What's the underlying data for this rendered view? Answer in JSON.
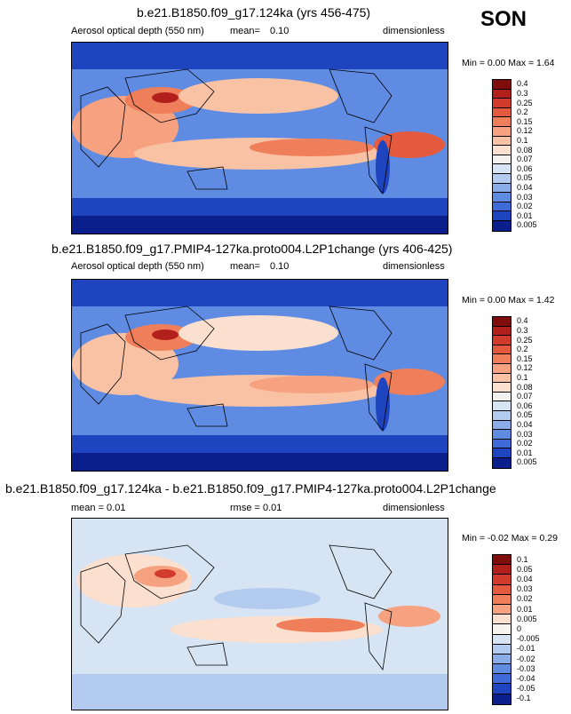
{
  "season": "SON",
  "panels": [
    {
      "title": "b.e21.B1850.f09_g17.124ka (yrs 456-475)",
      "left_label": "Aerosol optical depth (550 nm)",
      "mean_label": "mean=",
      "mean_value": "0.10",
      "units": "dimensionless",
      "minmax": "Min =   0.00 Max =   1.64",
      "colorbar_labels": [
        "0.4",
        "0.3",
        "0.25",
        "0.2",
        "0.15",
        "0.12",
        "0.1",
        "0.08",
        "0.07",
        "0.06",
        "0.05",
        "0.04",
        "0.03",
        "0.02",
        "0.01",
        "0.005"
      ]
    },
    {
      "title": "b.e21.B1850.f09_g17.PMIP4-127ka.proto004.L2P1change (yrs 406-425)",
      "left_label": "Aerosol optical depth (550 nm)",
      "mean_label": "mean=",
      "mean_value": "0.10",
      "units": "dimensionless",
      "minmax": "Min =   0.00 Max =   1.42",
      "colorbar_labels": [
        "0.4",
        "0.3",
        "0.25",
        "0.2",
        "0.15",
        "0.12",
        "0.1",
        "0.08",
        "0.07",
        "0.06",
        "0.05",
        "0.04",
        "0.03",
        "0.02",
        "0.01",
        "0.005"
      ]
    },
    {
      "title": "b.e21.B1850.f09_g17.124ka - b.e21.B1850.f09_g17.PMIP4-127ka.proto004.L2P1change",
      "left_label": "mean =   0.01",
      "rmse_label": "rmse =   0.01",
      "units": "dimensionless",
      "minmax": "Min =  -0.02 Max =   0.29",
      "colorbar_labels": [
        "0.1",
        "0.05",
        "0.04",
        "0.03",
        "0.02",
        "0.01",
        "0.005",
        "0",
        "-0.005",
        "-0.01",
        "-0.02",
        "-0.03",
        "-0.04",
        "-0.05",
        "-0.1"
      ]
    }
  ],
  "chart_data": [
    {
      "type": "heatmap",
      "title": "b.e21.B1850.f09_g17.124ka (yrs 456-475)",
      "variable": "Aerosol optical depth (550 nm)",
      "units": "dimensionless",
      "mean": 0.1,
      "min": 0.0,
      "max": 1.64,
      "levels": [
        0.005,
        0.01,
        0.02,
        0.03,
        0.04,
        0.05,
        0.06,
        0.07,
        0.08,
        0.1,
        0.12,
        0.15,
        0.2,
        0.25,
        0.3,
        0.4
      ]
    },
    {
      "type": "heatmap",
      "title": "b.e21.B1850.f09_g17.PMIP4-127ka.proto004.L2P1change (yrs 406-425)",
      "variable": "Aerosol optical depth (550 nm)",
      "units": "dimensionless",
      "mean": 0.1,
      "min": 0.0,
      "max": 1.42,
      "levels": [
        0.005,
        0.01,
        0.02,
        0.03,
        0.04,
        0.05,
        0.06,
        0.07,
        0.08,
        0.1,
        0.12,
        0.15,
        0.2,
        0.25,
        0.3,
        0.4
      ]
    },
    {
      "type": "heatmap",
      "title": "b.e21.B1850.f09_g17.124ka - b.e21.B1850.f09_g17.PMIP4-127ka.proto004.L2P1change",
      "units": "dimensionless",
      "mean": 0.01,
      "rmse": 0.01,
      "min": -0.02,
      "max": 0.29,
      "levels": [
        -0.1,
        -0.05,
        -0.04,
        -0.03,
        -0.02,
        -0.01,
        -0.005,
        0,
        0.005,
        0.01,
        0.02,
        0.03,
        0.04,
        0.05,
        0.1
      ]
    }
  ],
  "colors": {
    "seq": [
      "#7f0d0b",
      "#b2201c",
      "#d13b2b",
      "#e35a3f",
      "#ef7f5b",
      "#f6a281",
      "#fac2a5",
      "#fce0cf",
      "#f3f1ef",
      "#d7e4f4",
      "#b3cbee",
      "#8aadea",
      "#5f8ce2",
      "#3f6bd8",
      "#1f44c0",
      "#0a1e8c"
    ],
    "div": [
      "#7f0d0b",
      "#b2201c",
      "#d13b2b",
      "#e35a3f",
      "#ef7f5b",
      "#f6a281",
      "#fce0cf",
      "#f7f3ef",
      "#d7e4f4",
      "#b3cbee",
      "#8aadea",
      "#5f8ce2",
      "#3f6bd8",
      "#1f44c0",
      "#0a1e8c"
    ]
  }
}
